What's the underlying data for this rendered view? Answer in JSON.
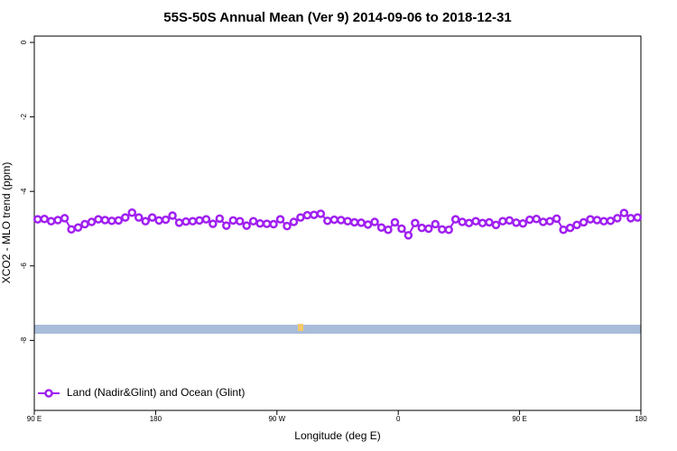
{
  "chart_data": {
    "type": "line",
    "title": "55S-50S Annual Mean (Ver 9)   2014-09-06 to 2018-12-31",
    "x_label": "Longitude (deg E)",
    "y_label": "XCO2 - MLO trend (ppm)",
    "x": [
      92.5,
      97.5,
      102.5,
      107.5,
      112.5,
      117.5,
      122.5,
      127.5,
      132.5,
      137.5,
      142.5,
      147.5,
      152.5,
      157.5,
      162.5,
      167.5,
      172.5,
      177.5,
      182.5,
      187.5,
      192.5,
      197.5,
      202.5,
      207.5,
      212.5,
      217.5,
      222.5,
      227.5,
      232.5,
      237.5,
      242.5,
      247.5,
      252.5,
      257.5,
      262.5,
      267.5,
      272.5,
      277.5,
      282.5,
      287.5,
      292.5,
      297.5,
      302.5,
      307.5,
      312.5,
      317.5,
      322.5,
      327.5,
      332.5,
      337.5,
      342.5,
      347.5,
      352.5,
      357.5,
      362.5,
      367.5,
      372.5,
      377.5,
      382.5,
      387.5,
      392.5,
      397.5,
      402.5,
      407.5,
      412.5,
      417.5,
      422.5,
      427.5,
      432.5,
      437.5,
      442.5,
      447.5,
      452.5,
      457.5,
      462.5,
      467.5,
      472.5,
      477.5,
      482.5,
      487.5,
      492.5,
      497.5,
      502.5,
      507.5,
      512.5,
      517.5,
      522.5,
      527.5,
      532.5,
      537.5
    ],
    "series": [
      {
        "name": "Land (Nadir&Glint) and Ocean (Glint)",
        "color": "#a020f0",
        "values": [
          -4.75,
          -4.74,
          -4.8,
          -4.77,
          -4.72,
          -5.02,
          -4.97,
          -4.88,
          -4.82,
          -4.75,
          -4.77,
          -4.79,
          -4.78,
          -4.7,
          -4.57,
          -4.7,
          -4.8,
          -4.7,
          -4.78,
          -4.76,
          -4.65,
          -4.84,
          -4.81,
          -4.8,
          -4.78,
          -4.75,
          -4.87,
          -4.73,
          -4.92,
          -4.78,
          -4.8,
          -4.92,
          -4.8,
          -4.86,
          -4.87,
          -4.88,
          -4.75,
          -4.93,
          -4.82,
          -4.7,
          -4.64,
          -4.63,
          -4.6,
          -4.79,
          -4.76,
          -4.77,
          -4.8,
          -4.83,
          -4.84,
          -4.89,
          -4.82,
          -4.97,
          -5.03,
          -4.83,
          -5.0,
          -5.18,
          -4.85,
          -4.98,
          -5.0,
          -4.88,
          -5.02,
          -5.03,
          -4.75,
          -4.82,
          -4.85,
          -4.8,
          -4.85,
          -4.83,
          -4.9,
          -4.8,
          -4.78,
          -4.84,
          -4.86,
          -4.76,
          -4.74,
          -4.82,
          -4.8,
          -4.73,
          -5.03,
          -4.98,
          -4.9,
          -4.83,
          -4.75,
          -4.77,
          -4.8,
          -4.79,
          -4.72,
          -4.58,
          -4.72,
          -4.7
        ]
      }
    ],
    "xlim": [
      90,
      540
    ],
    "xticks": [
      {
        "value": 90,
        "label": "90 E"
      },
      180,
      {
        "value": 270,
        "label": "90 W"
      },
      {
        "value": 360,
        "label": "0"
      },
      {
        "value": 450,
        "label": "90 E"
      },
      {
        "value": 540,
        "label": "180"
      }
    ],
    "ylim": [
      -9.88,
      0.17
    ],
    "yticks": [
      -8,
      -6,
      -4,
      -2,
      0
    ],
    "legend": "bottom-left"
  }
}
